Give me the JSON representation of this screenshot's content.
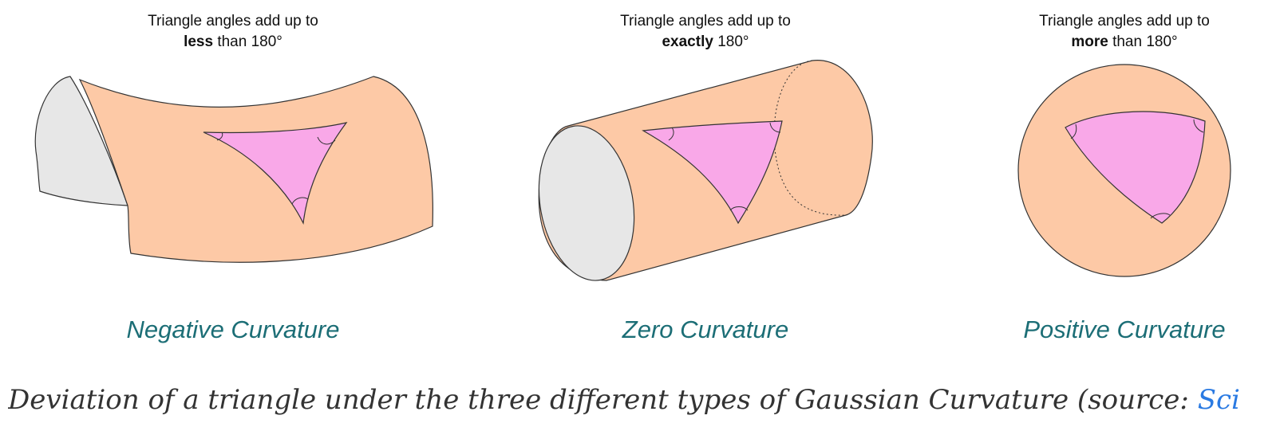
{
  "panels": [
    {
      "heading_line1": "Triangle angles add up to",
      "heading_bold": "less",
      "heading_rest": " than 180°",
      "label": "Negative Curvature"
    },
    {
      "heading_line1": "Triangle angles add up to",
      "heading_bold": "exactly",
      "heading_rest": " 180°",
      "label": "Zero Curvature"
    },
    {
      "heading_line1": "Triangle angles add up to",
      "heading_bold": "more",
      "heading_rest": " than 180°",
      "label": "Positive Curvature"
    }
  ],
  "caption": {
    "text": "Deviation of a triangle under the three different types of Gaussian Curvature (source: ",
    "link": "Sci"
  },
  "colors": {
    "surface": "#fdc9a6",
    "triangle": "#f9a8e8",
    "endcap": "#e7e7e7",
    "label": "#1c6e76",
    "link": "#2a7ae2"
  }
}
